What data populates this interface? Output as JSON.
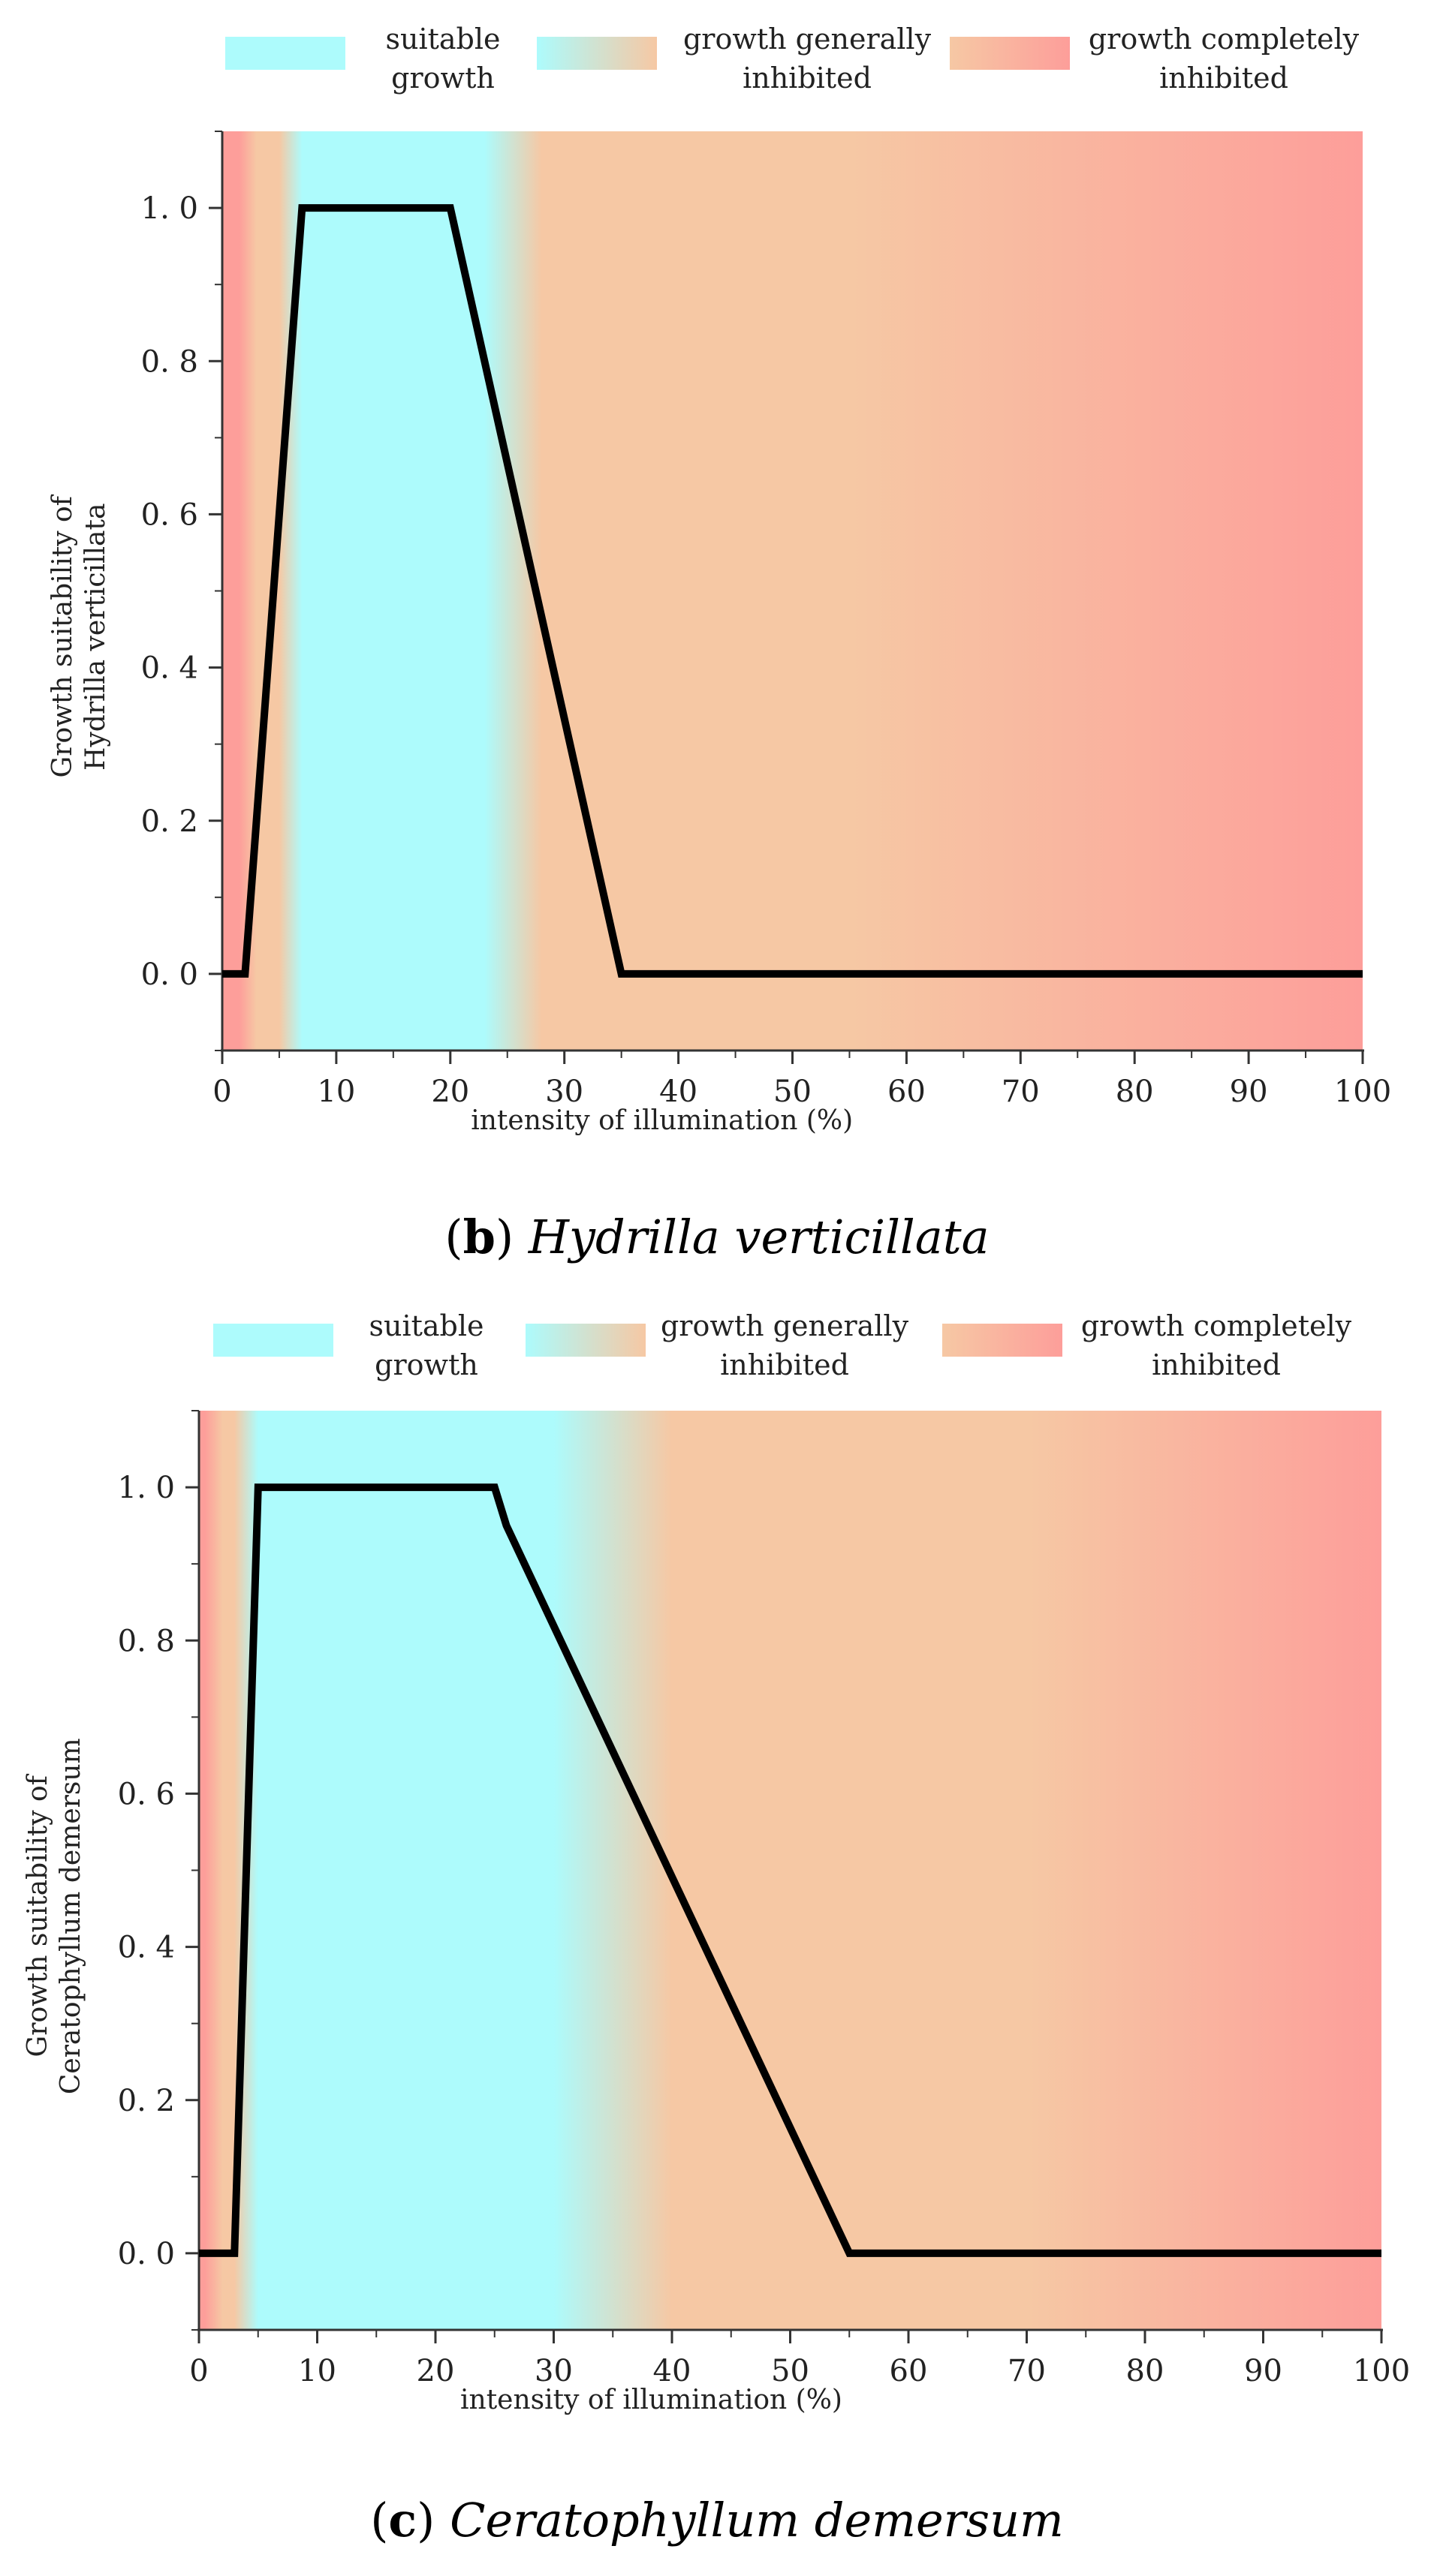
{
  "colors": {
    "suitable": "#adfbfc",
    "general": "#f6c8a4",
    "complete": "#fd9e9a",
    "curve": "#000000",
    "axis": "#333333"
  },
  "chart_data": [
    {
      "type": "line",
      "panel": "b",
      "species": "Hydrilla verticillata",
      "xlabel": "intensity of illumination (%)",
      "ylabel": [
        "Growth suitability of",
        "Hydrilla verticillata"
      ],
      "xlim": [
        0,
        100
      ],
      "ylim": [
        -0.1,
        1.1
      ],
      "xticks": [
        0,
        10,
        20,
        30,
        40,
        50,
        60,
        70,
        80,
        90,
        100
      ],
      "yticks": [
        0.0,
        0.2,
        0.4,
        0.6,
        0.8,
        1.0
      ],
      "ytick_labels": [
        "0. 0",
        "0. 2",
        "0. 4",
        "0. 6",
        "0. 8",
        "1. 0"
      ],
      "series": [
        {
          "name": "growth suitability",
          "x": [
            0,
            2,
            7,
            20,
            35,
            100
          ],
          "y": [
            0,
            0,
            1,
            1,
            0,
            0
          ]
        }
      ],
      "background_bands": [
        {
          "zone": "complete",
          "from": 0,
          "to": 1.5
        },
        {
          "zone": "general",
          "from": 3,
          "to": 5
        },
        {
          "zone": "suitable",
          "from": 7,
          "to": 23
        },
        {
          "zone": "general",
          "from": 28,
          "to": 35
        },
        {
          "zone": "general",
          "from": 36,
          "to": 55
        },
        {
          "zone": "complete",
          "from": 100,
          "to": 100
        }
      ],
      "legend": [
        {
          "label_lines": [
            "suitable",
            "growth"
          ],
          "zone": "suitable",
          "swatch": [
            "suitable",
            "suitable"
          ]
        },
        {
          "label_lines": [
            "growth generally",
            "inhibited"
          ],
          "zone": "general",
          "swatch": [
            "suitable",
            "general"
          ]
        },
        {
          "label_lines": [
            "growth completely",
            "inhibited"
          ],
          "zone": "complete",
          "swatch": [
            "general",
            "complete"
          ]
        }
      ],
      "caption": {
        "letter": "b",
        "species": "Hydrilla verticillata"
      }
    },
    {
      "type": "line",
      "panel": "c",
      "species": "Ceratophyllum demersum",
      "xlabel": "intensity of illumination (%)",
      "ylabel": [
        "Growth suitability of",
        "Ceratophyllum demersum"
      ],
      "xlim": [
        0,
        100
      ],
      "ylim": [
        -0.1,
        1.1
      ],
      "xticks": [
        0,
        10,
        20,
        30,
        40,
        50,
        60,
        70,
        80,
        90,
        100
      ],
      "yticks": [
        0.0,
        0.2,
        0.4,
        0.6,
        0.8,
        1.0
      ],
      "ytick_labels": [
        "0. 0",
        "0. 2",
        "0. 4",
        "0. 6",
        "0. 8",
        "1. 0"
      ],
      "series": [
        {
          "name": "growth suitability",
          "x": [
            0,
            3,
            5,
            25,
            26,
            55,
            100
          ],
          "y": [
            0,
            0,
            1,
            1,
            0.95,
            0,
            0
          ]
        }
      ],
      "background_bands": [
        {
          "zone": "complete",
          "from": 0,
          "to": 0.5
        },
        {
          "zone": "general",
          "from": 2,
          "to": 3
        },
        {
          "zone": "suitable",
          "from": 5,
          "to": 30
        },
        {
          "zone": "general",
          "from": 40,
          "to": 55
        },
        {
          "zone": "general",
          "from": 56,
          "to": 70
        },
        {
          "zone": "complete",
          "from": 100,
          "to": 100
        }
      ],
      "legend": [
        {
          "label_lines": [
            "suitable",
            "growth"
          ],
          "zone": "suitable",
          "swatch": [
            "suitable",
            "suitable"
          ]
        },
        {
          "label_lines": [
            "growth generally",
            "inhibited"
          ],
          "zone": "general",
          "swatch": [
            "suitable",
            "general"
          ]
        },
        {
          "label_lines": [
            "growth completely",
            "inhibited"
          ],
          "zone": "complete",
          "swatch": [
            "general",
            "complete"
          ]
        }
      ],
      "caption": {
        "letter": "c",
        "species": "Ceratophyllum demersum"
      }
    }
  ]
}
